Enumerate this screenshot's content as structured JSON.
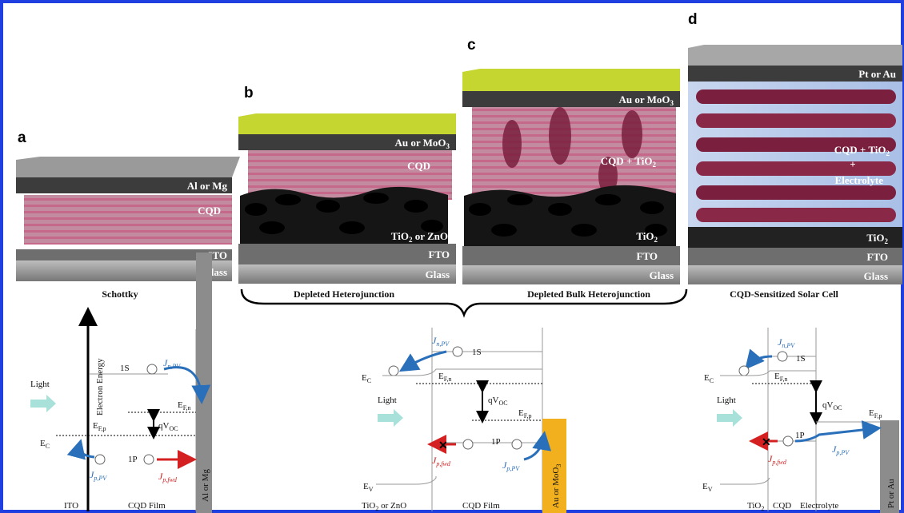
{
  "panel_letters": {
    "a": "a",
    "b": "b",
    "c": "c",
    "d": "d"
  },
  "devices": {
    "a": {
      "top": "Al or Mg",
      "middle": "CQD",
      "oxide": "ITO",
      "base": "Glass",
      "caption": "Schottky"
    },
    "b": {
      "top": "Au or MoO",
      "top_sub": "3",
      "middle": "CQD",
      "oxide": "TiO",
      "oxide_sub": "2",
      "oxide_rest": " or ZnO",
      "base_oxide": "FTO",
      "base": "Glass",
      "caption": "Depleted Heterojunction"
    },
    "c": {
      "top": "Au or MoO",
      "top_sub": "3",
      "middle": "CQD + TiO",
      "middle_sub": "2",
      "oxide": "TiO",
      "oxide_sub": "2",
      "base_oxide": "FTO",
      "base": "Glass",
      "caption": "Depleted Bulk Heterojunction"
    },
    "d": {
      "top": "Pt or Au",
      "middle": "CQD + TiO",
      "middle_sub": "2",
      "plus": "+",
      "electrolyte": "Electrolyte",
      "oxide": "TiO",
      "oxide_sub": "2",
      "base_oxide": "FTO",
      "base": "Glass",
      "caption": "CQD-Sensitized Solar Cell"
    }
  },
  "band_a": {
    "axis": "Electron Energy",
    "light": "Light",
    "s1": "1S",
    "p1": "1P",
    "ec": "E",
    "ec_sub": "C",
    "efp": "E",
    "efp_sub": "F,p",
    "efn": "E",
    "efn_sub": "F,n",
    "qvoc": "qV",
    "qvoc_sub": "OC",
    "jn": "J",
    "jn_sub": "n,PV",
    "jp": "J",
    "jp_sub": "p,PV",
    "jfwd": "J",
    "jfwd_sub": "p,fwd",
    "ito": "ITO",
    "film": "CQD Film",
    "metal": "Al or Mg"
  },
  "band_bc": {
    "light": "Light",
    "s1": "1S",
    "p1": "1P",
    "ec": "E",
    "ec_sub": "C",
    "ev": "E",
    "ev_sub": "V",
    "efn": "E",
    "efn_sub": "F,n",
    "efp": "E",
    "efp_sub": "F,p",
    "qvoc": "qV",
    "qvoc_sub": "OC",
    "jn": "J",
    "jn_sub": "n,PV",
    "jp": "J",
    "jp_sub": "p,PV",
    "jfwd": "J",
    "jfwd_sub": "p,fwd",
    "oxide": "TiO",
    "oxide_sub": "2",
    "oxide_rest": " or ZnO",
    "film": "CQD Film",
    "metal": "Au or MoO",
    "metal_sub": "3"
  },
  "band_d": {
    "light": "Light",
    "s1": "1S",
    "p1": "1P",
    "ec": "E",
    "ec_sub": "C",
    "ev": "E",
    "ev_sub": "V",
    "efn": "E",
    "efn_sub": "F,n",
    "efp": "E",
    "efp_sub": "F,p",
    "qvoc": "qV",
    "qvoc_sub": "OC",
    "jn": "J",
    "jn_sub": "n,PV",
    "jp": "J",
    "jp_sub": "p,PV",
    "jfwd": "J",
    "jfwd_sub": "p,fwd",
    "oxide": "TiO",
    "oxide_sub": "2",
    "cqd": "CQD",
    "electrolyte": "Electrolyte",
    "metal": "Pt or Au"
  },
  "colors": {
    "frame": "#1f3fe0",
    "metal": "#3c3c3c",
    "gold": "#c5d630",
    "cqd": "#a4375a",
    "glass": "#8c8c8c",
    "tio2": "#222222",
    "blue_arrow": "#2a6fba",
    "red_arrow": "#d42020",
    "light": "#a8e0da",
    "orange": "#f2b01e"
  }
}
